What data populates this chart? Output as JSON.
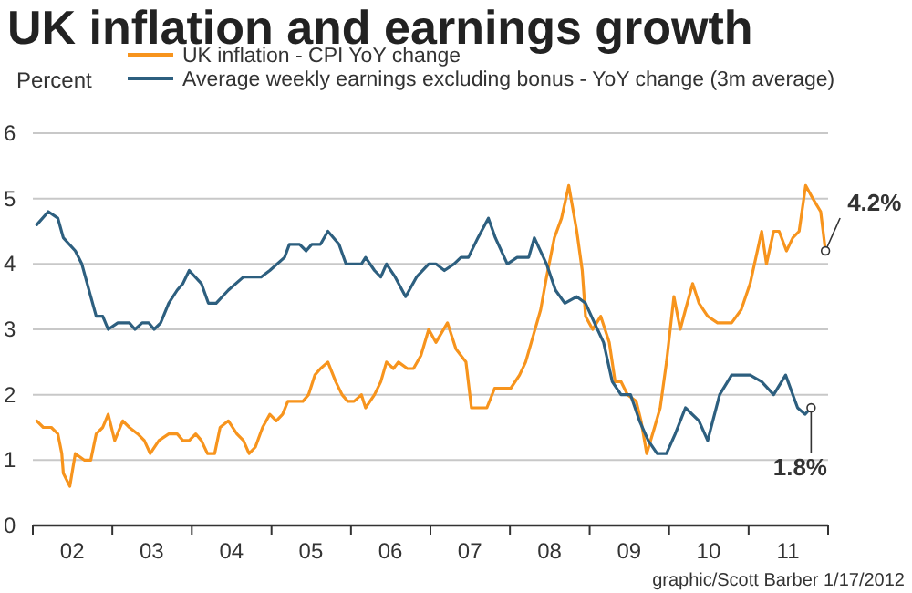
{
  "chart_data": {
    "type": "line",
    "title": "UK inflation and earnings growth",
    "ylabel": "Percent",
    "xlim": [
      "2002-01-01",
      "2012-01-01"
    ],
    "ylim": [
      0,
      6
    ],
    "yticks": [
      0,
      1,
      2,
      3,
      4,
      5,
      6
    ],
    "xticks": [
      {
        "value": "2002-01-01",
        "label": null
      },
      {
        "value": "2002-07-01",
        "label": "02"
      },
      {
        "value": "2003-01-01",
        "label": null
      },
      {
        "value": "2003-07-01",
        "label": "03"
      },
      {
        "value": "2004-01-01",
        "label": null
      },
      {
        "value": "2004-07-01",
        "label": "04"
      },
      {
        "value": "2005-01-01",
        "label": null
      },
      {
        "value": "2005-07-01",
        "label": "05"
      },
      {
        "value": "2006-01-01",
        "label": null
      },
      {
        "value": "2006-07-01",
        "label": "06"
      },
      {
        "value": "2007-01-01",
        "label": null
      },
      {
        "value": "2007-07-01",
        "label": "07"
      },
      {
        "value": "2008-01-01",
        "label": null
      },
      {
        "value": "2008-07-01",
        "label": "08"
      },
      {
        "value": "2009-01-01",
        "label": null
      },
      {
        "value": "2009-07-01",
        "label": "09"
      },
      {
        "value": "2010-01-01",
        "label": null
      },
      {
        "value": "2010-07-01",
        "label": "10"
      },
      {
        "value": "2011-01-01",
        "label": null
      },
      {
        "value": "2011-07-01",
        "label": "11"
      },
      {
        "value": "2012-01-01",
        "label": null
      }
    ],
    "grid": "y",
    "legend": "top",
    "line_style": "solid",
    "series": [
      {
        "name": "UK inflation - CPI YoY change",
        "color": "#f7941d",
        "x": [
          "2002-01-19",
          "2002-02-18",
          "2002-03-27",
          "2002-04-26",
          "2002-05-14",
          "2002-05-21",
          "2002-06-20",
          "2002-07-15",
          "2002-08-25",
          "2002-09-24",
          "2002-10-19",
          "2002-11-18",
          "2002-12-13",
          "2003-01-12",
          "2003-02-18",
          "2003-03-20",
          "2003-04-28",
          "2003-05-28",
          "2003-06-24",
          "2003-08-03",
          "2003-09-17",
          "2003-10-26",
          "2003-11-21",
          "2003-12-20",
          "2004-01-19",
          "2004-02-14",
          "2004-03-13",
          "2004-04-15",
          "2004-05-10",
          "2004-06-17",
          "2004-07-26",
          "2004-08-25",
          "2004-09-20",
          "2004-10-19",
          "2004-11-21",
          "2004-12-24",
          "2005-01-23",
          "2005-02-21",
          "2005-03-17",
          "2005-04-26",
          "2005-05-25",
          "2005-06-20",
          "2005-07-19",
          "2005-08-14",
          "2005-09-17",
          "2005-10-23",
          "2005-11-21",
          "2005-12-17",
          "2006-01-15",
          "2006-02-18",
          "2006-03-09",
          "2006-04-19",
          "2006-05-18",
          "2006-06-13",
          "2006-07-15",
          "2006-08-07",
          "2006-09-17",
          "2006-10-15",
          "2006-11-18",
          "2006-12-24",
          "2007-01-26",
          "2007-03-20",
          "2007-04-28",
          "2007-06-13",
          "2007-07-08",
          "2007-08-21",
          "2007-09-17",
          "2007-10-23",
          "2008-01-05",
          "2008-02-14",
          "2008-03-13",
          "2008-04-08",
          "2008-05-21",
          "2008-06-17",
          "2008-07-23",
          "2008-08-25",
          "2008-09-27",
          "2008-11-03",
          "2008-11-28",
          "2008-12-13",
          "2009-01-15",
          "2009-02-21",
          "2009-04-01",
          "2009-04-28",
          "2009-05-25",
          "2009-06-24",
          "2009-08-03",
          "2009-08-25",
          "2009-09-20",
          "2009-10-26",
          "2009-11-21",
          "2009-12-20",
          "2010-01-23",
          "2010-02-21",
          "2010-03-17",
          "2010-04-19",
          "2010-05-18",
          "2010-06-27",
          "2010-08-11",
          "2010-10-15",
          "2010-11-28",
          "2011-01-08",
          "2011-03-02",
          "2011-03-24",
          "2011-04-26",
          "2011-05-21",
          "2011-06-24",
          "2011-07-23",
          "2011-08-21",
          "2011-09-20",
          "2011-10-23",
          "2011-11-28",
          "2011-12-20"
        ],
        "values": [
          1.6,
          1.5,
          1.5,
          1.4,
          1.1,
          0.8,
          0.6,
          1.1,
          1.0,
          1.0,
          1.4,
          1.5,
          1.7,
          1.3,
          1.6,
          1.5,
          1.4,
          1.3,
          1.1,
          1.3,
          1.4,
          1.4,
          1.3,
          1.3,
          1.4,
          1.3,
          1.1,
          1.1,
          1.5,
          1.6,
          1.4,
          1.3,
          1.1,
          1.2,
          1.5,
          1.7,
          1.6,
          1.7,
          1.9,
          1.9,
          1.9,
          2.0,
          2.3,
          2.4,
          2.5,
          2.2,
          2.0,
          1.9,
          1.9,
          2.0,
          1.8,
          2.0,
          2.2,
          2.5,
          2.4,
          2.5,
          2.4,
          2.4,
          2.6,
          3.0,
          2.8,
          3.1,
          2.7,
          2.5,
          1.8,
          1.8,
          1.8,
          2.1,
          2.1,
          2.3,
          2.5,
          2.8,
          3.3,
          3.8,
          4.4,
          4.7,
          5.2,
          4.5,
          3.9,
          3.2,
          3.0,
          3.2,
          2.8,
          2.2,
          2.2,
          2.0,
          1.9,
          1.6,
          1.1,
          1.5,
          1.8,
          2.5,
          3.5,
          3.0,
          3.3,
          3.7,
          3.4,
          3.2,
          3.1,
          3.1,
          3.3,
          3.7,
          4.5,
          4.0,
          4.5,
          4.5,
          4.2,
          4.4,
          4.5,
          5.2,
          5.0,
          4.8,
          4.2
        ]
      },
      {
        "name": "Average weekly earnings excluding bonus - YoY change (3m average)",
        "color": "#2d5f7f",
        "x": [
          "2002-01-19",
          "2002-03-13",
          "2002-04-26",
          "2002-05-21",
          "2002-07-15",
          "2002-08-14",
          "2002-09-24",
          "2002-10-19",
          "2002-11-18",
          "2002-12-13",
          "2003-01-26",
          "2003-03-20",
          "2003-04-15",
          "2003-05-18",
          "2003-06-17",
          "2003-07-12",
          "2003-08-11",
          "2003-09-17",
          "2003-10-26",
          "2003-11-21",
          "2003-12-20",
          "2004-02-14",
          "2004-03-17",
          "2004-04-22",
          "2004-06-17",
          "2004-08-25",
          "2004-11-14",
          "2004-12-24",
          "2005-03-02",
          "2005-03-24",
          "2005-05-10",
          "2005-06-09",
          "2005-07-05",
          "2005-08-14",
          "2005-09-17",
          "2005-11-07",
          "2005-12-09",
          "2006-02-18",
          "2006-03-09",
          "2006-04-19",
          "2006-05-18",
          "2006-06-13",
          "2006-07-23",
          "2006-09-09",
          "2006-10-29",
          "2006-12-24",
          "2007-01-26",
          "2007-03-06",
          "2007-04-19",
          "2007-05-21",
          "2007-06-24",
          "2007-08-07",
          "2007-09-24",
          "2007-10-26",
          "2007-12-20",
          "2008-02-03",
          "2008-03-27",
          "2008-04-22",
          "2008-06-17",
          "2008-07-28",
          "2008-09-09",
          "2008-11-03",
          "2008-12-13",
          "2009-01-23",
          "2009-03-06",
          "2009-04-15",
          "2009-05-25",
          "2009-07-08",
          "2009-08-18",
          "2009-09-27",
          "2009-11-07",
          "2009-12-20",
          "2010-01-29",
          "2010-03-17",
          "2010-05-18",
          "2010-06-27",
          "2010-08-21",
          "2010-10-15",
          "2011-01-08",
          "2011-03-02",
          "2011-04-26",
          "2011-06-20",
          "2011-08-14",
          "2011-09-17",
          "2011-10-15"
        ],
        "values": [
          4.6,
          4.8,
          4.7,
          4.4,
          4.2,
          4.0,
          3.5,
          3.2,
          3.2,
          3.0,
          3.1,
          3.1,
          3.0,
          3.1,
          3.1,
          3.0,
          3.1,
          3.4,
          3.6,
          3.7,
          3.9,
          3.7,
          3.4,
          3.4,
          3.6,
          3.8,
          3.8,
          3.9,
          4.1,
          4.3,
          4.3,
          4.2,
          4.3,
          4.3,
          4.5,
          4.3,
          4.0,
          4.0,
          4.1,
          3.9,
          3.8,
          4.0,
          3.8,
          3.5,
          3.8,
          4.0,
          4.0,
          3.9,
          4.0,
          4.1,
          4.1,
          4.4,
          4.7,
          4.4,
          4.0,
          4.1,
          4.1,
          4.4,
          4.0,
          3.6,
          3.4,
          3.5,
          3.4,
          3.1,
          2.8,
          2.2,
          2.0,
          2.0,
          1.6,
          1.3,
          1.1,
          1.1,
          1.4,
          1.8,
          1.6,
          1.3,
          2.0,
          2.3,
          2.3,
          2.2,
          2.0,
          2.3,
          1.8,
          1.7,
          1.8
        ]
      }
    ],
    "annotations": [
      {
        "text": "4.2%",
        "x": "2011-12-20",
        "y": 4.2
      },
      {
        "text": "1.8%",
        "x": "2011-10-15",
        "y": 1.8
      },
      "graphic/Scott Barber 1/17/2012"
    ]
  }
}
